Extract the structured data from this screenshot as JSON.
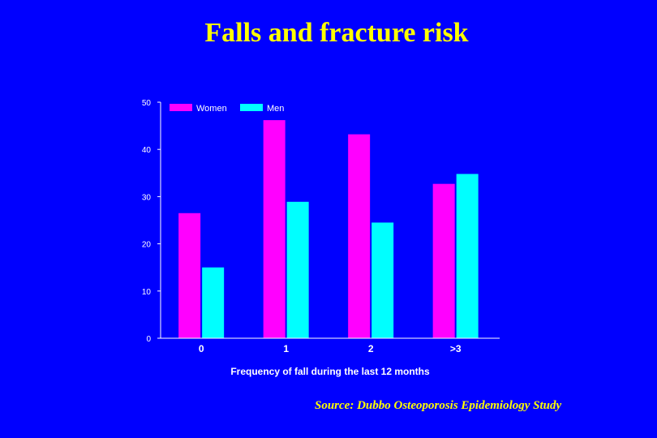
{
  "slide": {
    "title": "Falls and fracture risk",
    "source": "Source: Dubbo Osteoporosis Epidemiology Study"
  },
  "colors": {
    "background": "#0000ff",
    "title": "#ffff00",
    "axis": "#ffffff",
    "women": "#ff00ff",
    "men": "#00ffff"
  },
  "chart_data": {
    "type": "bar",
    "title": "",
    "xlabel": "Frequency of fall during the last 12 months",
    "ylabel": "",
    "categories": [
      "0",
      "1",
      "2",
      ">3"
    ],
    "series": [
      {
        "name": "Women",
        "values": [
          26.5,
          46.2,
          43.2,
          32.7
        ]
      },
      {
        "name": "Men",
        "values": [
          15.0,
          28.9,
          24.5,
          34.8
        ]
      }
    ],
    "ylim": [
      0,
      50
    ],
    "yticks": [
      0,
      10,
      20,
      30,
      40,
      50
    ],
    "grid": false,
    "legend": "top-left"
  }
}
